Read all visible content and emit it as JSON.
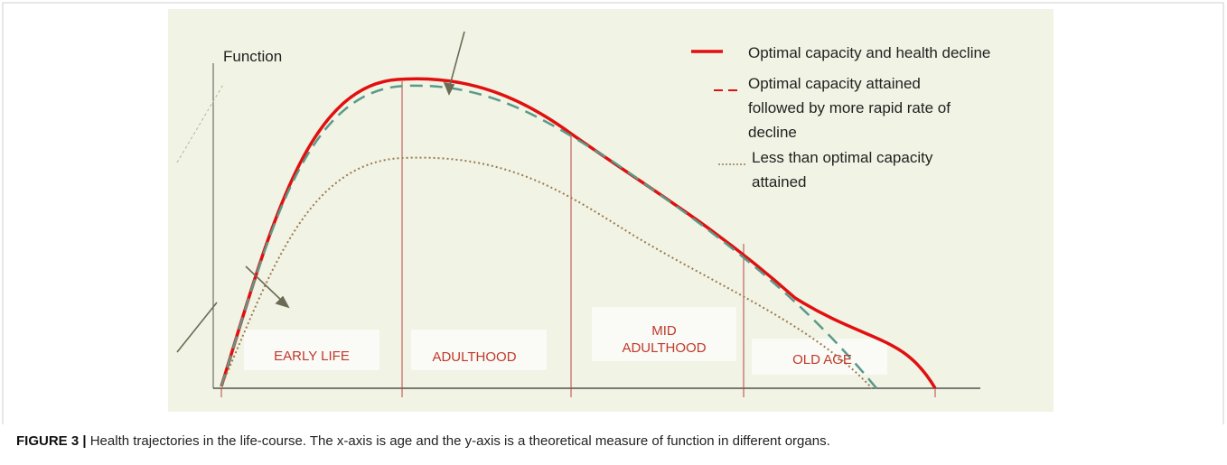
{
  "figure": {
    "y_label": "Function",
    "legend": [
      {
        "lines": [
          "Optimal capacity and health decline"
        ]
      },
      {
        "lines": [
          "Optimal capacity attained",
          "followed by more rapid rate of",
          "decline"
        ]
      },
      {
        "lines": [
          "Less than optimal capacity",
          "attained"
        ]
      }
    ],
    "stages": [
      {
        "lines": [
          "EARLY LIFE"
        ]
      },
      {
        "lines": [
          "ADULTHOOD"
        ]
      },
      {
        "lines": [
          "MID",
          "ADULTHOOD"
        ]
      },
      {
        "lines": [
          "OLD AGE"
        ]
      }
    ],
    "caption": {
      "label": "FIGURE 3 |",
      "text": "Health trajectories in the life-course. The x-axis is age and the y-axis is a theoretical measure of function in different organs."
    }
  }
}
